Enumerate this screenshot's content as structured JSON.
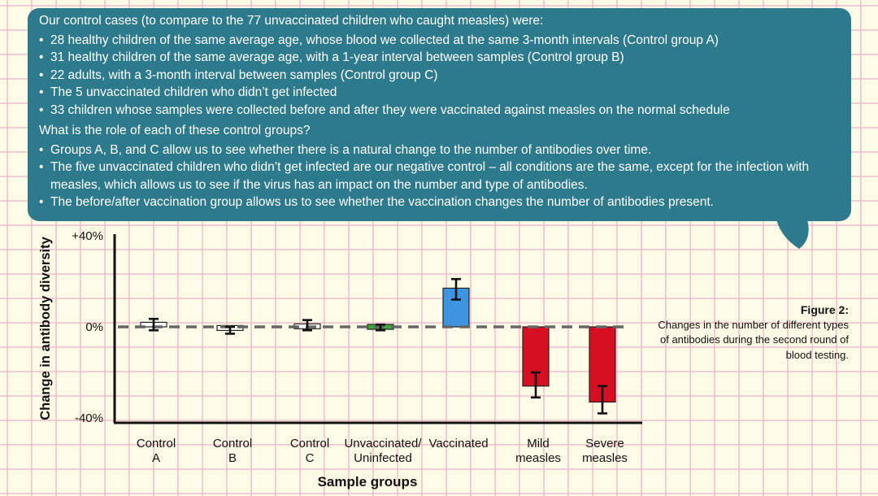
{
  "bubble": {
    "intro": "Our control cases (to compare to the 77 unvaccinated children who caught measles) were:",
    "controls": [
      "28 healthy children of the same average age, whose blood we collected at the same 3-month intervals (Control group A)",
      "31 healthy children of the same average age, with a 1-year interval between samples (Control group B)",
      "22 adults, with a 3-month interval between samples (Control group C)",
      "The 5 unvaccinated children who didn’t get infected",
      "33 children whose samples were collected before and after they were vaccinated against measles on the normal schedule"
    ],
    "question": "What is the role of each of these control groups?",
    "answers": [
      "Groups A, B, and C allow us to see whether there is a natural change to the number of antibodies over time.",
      "The five unvaccinated children who didn’t get infected are our negative control – all conditions are the same, except for the infection with measles, which allows us to see if the virus has an impact on the number and type of antibodies.",
      "The before/after vaccination group allows us to see whether the vaccination changes the number of antibodies present."
    ]
  },
  "caption": {
    "title": "Figure 2:",
    "text": "Changes in the number of different types of antibodies during the second round of blood testing."
  },
  "colors": {
    "bubble": "#2d7a8c",
    "grid": "#e8aac4",
    "background": "#fdfbe6",
    "vaccinated": "#3d94e0",
    "unvaccinated": "#3aa83a",
    "measles": "#d60f22",
    "control": "#ffffff"
  },
  "chart_data": {
    "type": "bar",
    "categories": [
      [
        "Control",
        "A"
      ],
      [
        "Control",
        "B"
      ],
      [
        "Control",
        "C"
      ],
      [
        "Unvaccinated/",
        "Uninfected"
      ],
      [
        "Vaccinated"
      ],
      [
        "Mild",
        "measles"
      ],
      [
        "Severe",
        "measles"
      ]
    ],
    "values": [
      2,
      -1,
      0.5,
      0,
      17,
      -26,
      -33
    ],
    "error_low": [
      -1.5,
      -3,
      -1.5,
      -1.5,
      12,
      -31,
      -38
    ],
    "error_high": [
      3.5,
      0,
      3,
      1,
      21,
      -20,
      -26
    ],
    "bar_colors": [
      "#ffffff",
      "#ffffff",
      "#ffffff",
      "#3aa83a",
      "#3d94e0",
      "#d60f22",
      "#d60f22"
    ],
    "ylim": [
      -40,
      40
    ],
    "yticks": [
      40,
      0,
      -40
    ],
    "ytick_labels": [
      "+40%",
      "0%",
      "-40%"
    ],
    "xlabel": "Sample groups",
    "ylabel": "Change in antibody diversity",
    "zero_line": "dashed"
  }
}
